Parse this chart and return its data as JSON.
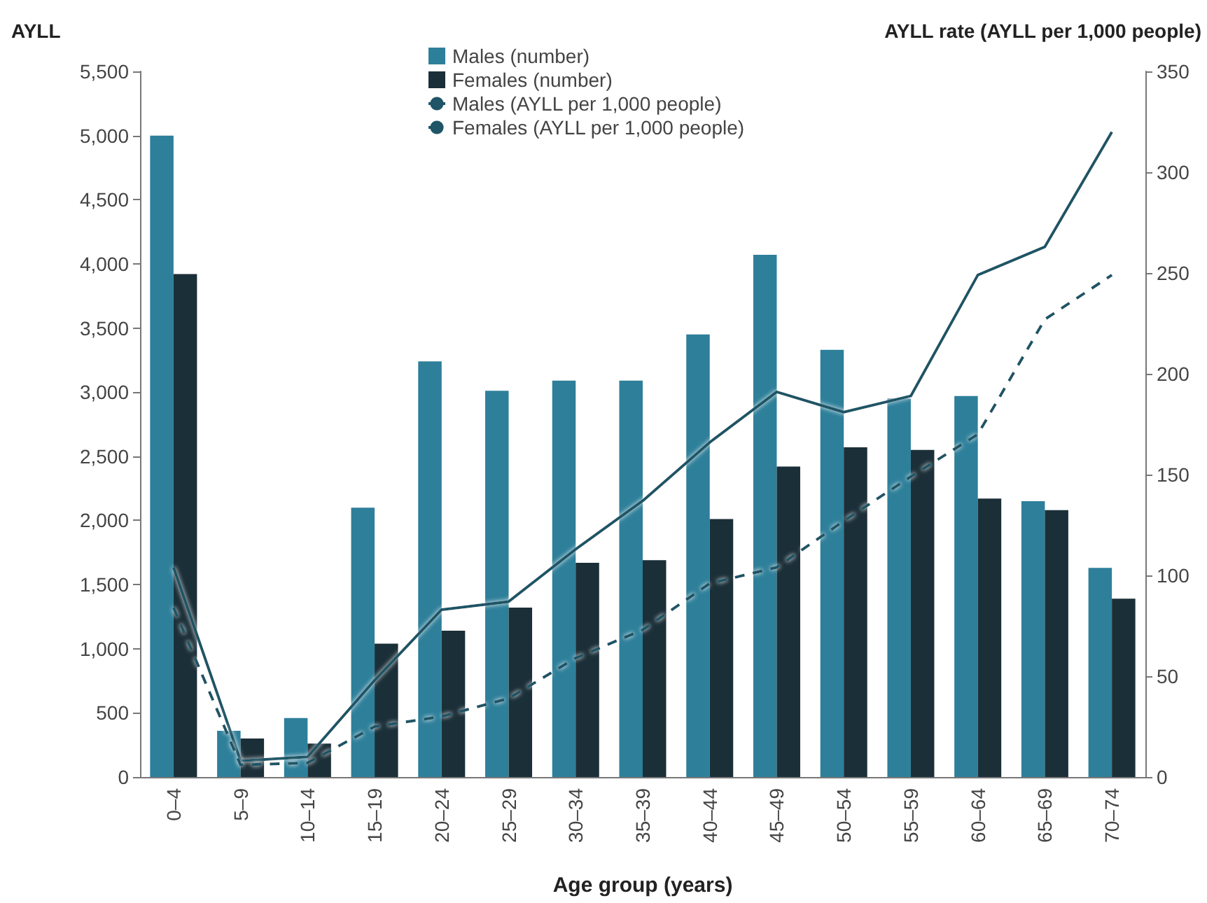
{
  "chart_data": {
    "type": "bar",
    "xlabel": "Age group (years)",
    "ylabel": "AYLL",
    "y2label": "AYLL rate (AYLL per 1,000 people)",
    "categories": [
      "0–4",
      "5–9",
      "10–14",
      "15–19",
      "20–24",
      "25–29",
      "30–34",
      "35–39",
      "40–44",
      "45–49",
      "50–54",
      "55–59",
      "60–64",
      "65–69",
      "70–74"
    ],
    "series": [
      {
        "name": "Males (number)",
        "color": "#2e7f9a",
        "values": [
          5000,
          360,
          460,
          2100,
          3240,
          3010,
          3090,
          3090,
          3450,
          4070,
          3330,
          2950,
          2970,
          2150,
          1630
        ]
      },
      {
        "name": "Females (number)",
        "color": "#1b2f38",
        "values": [
          3920,
          300,
          260,
          1040,
          1140,
          1320,
          1670,
          1690,
          2010,
          2420,
          2570,
          2550,
          2170,
          2080,
          1390
        ]
      },
      {
        "name": "Males (AYLL per 1,000 people)",
        "type": "line",
        "axis": "y2",
        "line_style": "solid",
        "color": "#1f5566",
        "values": [
          104,
          8,
          10,
          48,
          83,
          87,
          113,
          137,
          166,
          191,
          181,
          189,
          249,
          263,
          320
        ]
      },
      {
        "name": "Females (AYLL per 1,000 people)",
        "type": "line",
        "axis": "y2",
        "line_style": "dashed",
        "color": "#1f5566",
        "values": [
          84,
          6,
          7,
          25,
          30,
          39,
          59,
          73,
          96,
          104,
          127,
          149,
          170,
          227,
          249
        ]
      }
    ],
    "ylim": [
      0,
      5500
    ],
    "yticks": [
      {
        "value": 0,
        "label": "0"
      },
      {
        "value": 500,
        "label": "500"
      },
      {
        "value": 1000,
        "label": "1,000"
      },
      {
        "value": 1500,
        "label": "1,500"
      },
      {
        "value": 2000,
        "label": "2,000"
      },
      {
        "value": 2500,
        "label": "2,500"
      },
      {
        "value": 3000,
        "label": "3,000"
      },
      {
        "value": 3500,
        "label": "3,500"
      },
      {
        "value": 4000,
        "label": "4,000"
      },
      {
        "value": 4500,
        "label": "4,500"
      },
      {
        "value": 5000,
        "label": "5,000"
      },
      {
        "value": 5500,
        "label": "5,500"
      }
    ],
    "y2lim": [
      0,
      350
    ],
    "y2ticks": [
      0,
      50,
      100,
      150,
      200,
      250,
      300,
      350
    ],
    "grid": false,
    "legend": "top"
  }
}
